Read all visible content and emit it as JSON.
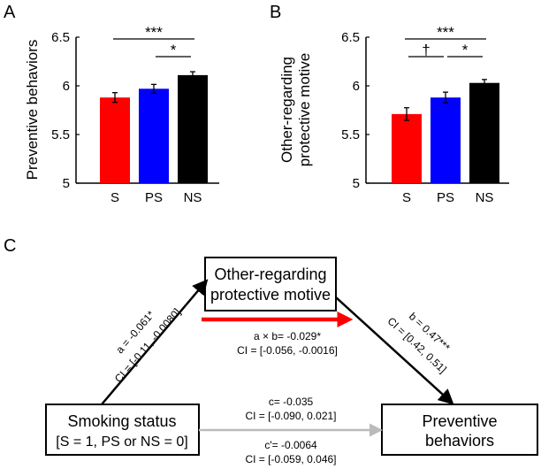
{
  "chart_data": [
    {
      "type": "bar",
      "panel_label": "A",
      "categories": [
        "S",
        "PS",
        "NS"
      ],
      "values": [
        5.88,
        5.97,
        6.11
      ],
      "errors": [
        0.05,
        0.045,
        0.035
      ],
      "colors": [
        "#ff0000",
        "#0000ff",
        "#000000"
      ],
      "ylabel": "Preventive behaviors",
      "ylim": [
        5,
        6.5
      ],
      "yticks": [
        "5",
        "5.5",
        "6",
        "6.5"
      ],
      "significance": [
        {
          "from": 0,
          "to": 2,
          "label": "***",
          "level": 2
        },
        {
          "from": 1,
          "to": 2,
          "label": "*",
          "level": 1
        }
      ]
    },
    {
      "type": "bar",
      "panel_label": "B",
      "categories": [
        "S",
        "PS",
        "NS"
      ],
      "values": [
        5.71,
        5.88,
        6.03
      ],
      "errors": [
        0.065,
        0.055,
        0.035
      ],
      "colors": [
        "#ff0000",
        "#0000ff",
        "#000000"
      ],
      "ylabel_lines": [
        "Other-regarding",
        "protective motive"
      ],
      "ylim": [
        5,
        6.5
      ],
      "yticks": [
        "5",
        "5.5",
        "6",
        "6.5"
      ],
      "significance": [
        {
          "from": 0,
          "to": 2,
          "label": "***",
          "level": 2
        },
        {
          "from": 0,
          "to": 1,
          "label": "†",
          "level": 1
        },
        {
          "from": 1,
          "to": 2,
          "label": "*",
          "level": 1
        }
      ]
    }
  ],
  "mediation": {
    "panel_label": "C",
    "mediator_lines": [
      "Other-regarding",
      "protective motive"
    ],
    "predictor_lines": [
      "Smoking status",
      "[S = 1, PS or NS = 0]"
    ],
    "outcome_lines": [
      "Preventive",
      "behaviors"
    ],
    "path_a": {
      "coef": "a = -0.061*",
      "ci": "CI = [-0.11, -0.0080]"
    },
    "path_b": {
      "coef": "b = 0.47***",
      "ci": "CI = [0.42, 0.51]"
    },
    "indirect": {
      "coef": "a × b= -0.029*",
      "ci": "CI = [-0.056, -0.0016]"
    },
    "total": {
      "coef": "c= -0.035",
      "ci": "CI = [-0.090, 0.021]"
    },
    "direct": {
      "coef": "c'= -0.0064",
      "ci": "CI = [-0.059, 0.046]"
    },
    "colors": {
      "indirect_arrow": "#ff0000",
      "direct_arrow": "#bbbbbb",
      "path_arrow": "#000000"
    }
  }
}
